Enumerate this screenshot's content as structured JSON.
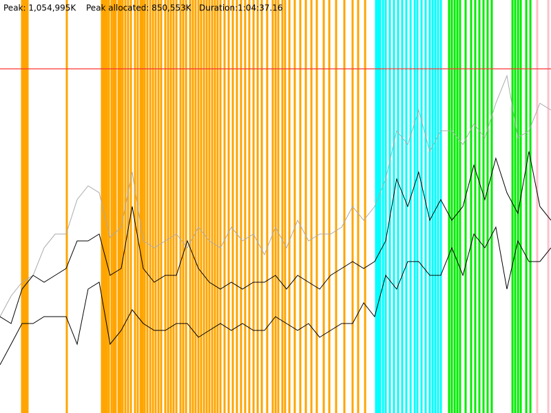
{
  "chart_data": {
    "type": "line",
    "annotations": [
      "Peak: 1,054,995K",
      "Peak allocated: 850,553K",
      "Duration:1:04:37.16"
    ],
    "xlim": [
      0,
      3877
    ],
    "ylim": [
      0,
      1266000
    ],
    "reference_line": {
      "value": 1054995,
      "color": "#ff3030"
    },
    "bands": [
      {
        "color": "#ffa500",
        "x": [
          155,
          165,
          174,
          184,
          194,
          470,
          717,
          727,
          737,
          751,
          766,
          785,
          800,
          814,
          834,
          848,
          863,
          882,
          901,
          921,
          950,
          969,
          989,
          1003,
          1018,
          1037,
          1057,
          1076,
          1095,
          1115,
          1134,
          1163,
          1183,
          1202,
          1221,
          1241,
          1270,
          1289,
          1309,
          1338,
          1357,
          1376,
          1396,
          1415,
          1435,
          1454,
          1473,
          1493,
          1512,
          1531,
          1551,
          1580,
          1609,
          1638,
          1667,
          1696,
          1725,
          1754,
          1784,
          1813,
          1842,
          1880,
          1919,
          1939,
          1958,
          1987,
          2006,
          2036,
          2074,
          2113,
          2152,
          2191,
          2229,
          2278,
          2317,
          2365,
          2423,
          2481,
          2520,
          2569
        ]
      },
      {
        "color": "#00ffff",
        "x": [
          2646,
          2661,
          2675,
          2695,
          2714,
          2743,
          2772,
          2801,
          2830,
          2859,
          2889,
          2918,
          2937,
          2966,
          2995,
          3024,
          3044,
          3063,
          3082,
          3102
        ]
      },
      {
        "color": "#00ee00",
        "x": [
          3160,
          3179,
          3199,
          3218,
          3237,
          3276,
          3315,
          3344,
          3373,
          3402,
          3431,
          3460,
          3606,
          3625,
          3645,
          3664,
          3703,
          3732
        ]
      },
      {
        "color": "#ffc0cb",
        "x": [
          3780,
          3858
        ]
      }
    ],
    "x": [
      0,
      78,
      155,
      233,
      310,
      388,
      465,
      543,
      620,
      698,
      775,
      853,
      930,
      1008,
      1085,
      1163,
      1241,
      1318,
      1396,
      1473,
      1551,
      1628,
      1706,
      1783,
      1861,
      1938,
      2016,
      2094,
      2171,
      2249,
      2326,
      2404,
      2481,
      2559,
      2636,
      2714,
      2791,
      2869,
      2946,
      3024,
      3101,
      3179,
      3257,
      3334,
      3412,
      3489,
      3567,
      3644,
      3722,
      3799,
      3877
    ],
    "series": [
      {
        "color": "#aaaaaa",
        "values": [
          295400,
          358700,
          400900,
          422000,
          506400,
          548600,
          548600,
          654100,
          696300,
          675200,
          538050,
          569700,
          738500,
          527500,
          506400,
          527500,
          548600,
          506400,
          569700,
          527500,
          506400,
          569700,
          527500,
          548600,
          485300,
          569700,
          506400,
          590800,
          527500,
          548600,
          548600,
          569700,
          633000,
          590800,
          633000,
          717400,
          865100,
          822900,
          928400,
          801800,
          865100,
          865100,
          822900,
          886200,
          844000,
          949500,
          1033900,
          844000,
          865100,
          949500,
          928400
        ]
      },
      {
        "color": "#000000",
        "values": [
          295400,
          274300,
          379800,
          422000,
          400900,
          422000,
          443100,
          527500,
          527500,
          548600,
          422000,
          443100,
          633000,
          443100,
          400900,
          422000,
          422000,
          527500,
          443100,
          400900,
          379800,
          400900,
          379800,
          400900,
          400900,
          422000,
          379800,
          422000,
          400900,
          379800,
          422000,
          443100,
          464200,
          443100,
          464200,
          527500,
          717400,
          633000,
          738500,
          590800,
          654100,
          590800,
          633000,
          759600,
          654100,
          780700,
          675200,
          611900,
          801800,
          633000,
          590800
        ]
      },
      {
        "color": "#000000",
        "values": [
          147700,
          211000,
          274300,
          274300,
          295400,
          295400,
          295400,
          211000,
          379800,
          400900,
          211000,
          253200,
          316500,
          274300,
          253200,
          253200,
          274300,
          274300,
          232100,
          253200,
          274300,
          253200,
          274300,
          253200,
          253200,
          295400,
          274300,
          253200,
          274300,
          232100,
          253200,
          274300,
          274300,
          337600,
          295400,
          422000,
          379800,
          464200,
          464200,
          422000,
          422000,
          506400,
          422000,
          548600,
          506400,
          569700,
          379800,
          527500,
          464200,
          464200,
          506400
        ]
      }
    ]
  }
}
